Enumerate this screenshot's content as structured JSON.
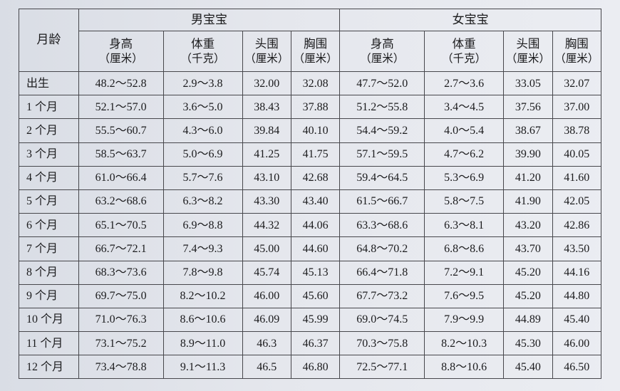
{
  "border_color": "#47474c",
  "text_color": "#1b1b1d",
  "background_color": "#e3e5eb",
  "font_family": "SimSun",
  "header": {
    "age_label": "月龄",
    "groups": [
      "男宝宝",
      "女宝宝"
    ],
    "metrics": [
      {
        "label": "身高",
        "unit": "（厘米）"
      },
      {
        "label": "体重",
        "unit": "（千克）"
      },
      {
        "label": "头围",
        "unit": "（厘米）"
      },
      {
        "label": "胸围",
        "unit": "（厘米）"
      }
    ]
  },
  "rows": [
    {
      "age": "出生",
      "m": [
        "48.2～52.8",
        "2.9～3.8",
        "32.00",
        "32.08"
      ],
      "f": [
        "47.7～52.0",
        "2.7～3.6",
        "33.05",
        "32.07"
      ]
    },
    {
      "age": "1 个月",
      "m": [
        "52.1～57.0",
        "3.6～5.0",
        "38.43",
        "37.88"
      ],
      "f": [
        "51.2～55.8",
        "3.4～4.5",
        "37.56",
        "37.00"
      ]
    },
    {
      "age": "2 个月",
      "m": [
        "55.5～60.7",
        "4.3～6.0",
        "39.84",
        "40.10"
      ],
      "f": [
        "54.4～59.2",
        "4.0～5.4",
        "38.67",
        "38.78"
      ]
    },
    {
      "age": "3 个月",
      "m": [
        "58.5～63.7",
        "5.0～6.9",
        "41.25",
        "41.75"
      ],
      "f": [
        "57.1～59.5",
        "4.7～6.2",
        "39.90",
        "40.05"
      ]
    },
    {
      "age": "4 个月",
      "m": [
        "61.0～66.4",
        "5.7～7.6",
        "43.10",
        "42.68"
      ],
      "f": [
        "59.4～64.5",
        "5.3～6.9",
        "41.20",
        "41.60"
      ]
    },
    {
      "age": "5 个月",
      "m": [
        "63.2～68.6",
        "6.3～8.2",
        "43.30",
        "43.40"
      ],
      "f": [
        "61.5～66.7",
        "5.8～7.5",
        "41.90",
        "42.05"
      ]
    },
    {
      "age": "6 个月",
      "m": [
        "65.1～70.5",
        "6.9～8.8",
        "44.32",
        "44.06"
      ],
      "f": [
        "63.3～68.6",
        "6.3～8.1",
        "43.20",
        "42.86"
      ]
    },
    {
      "age": "7 个月",
      "m": [
        "66.7～72.1",
        "7.4～9.3",
        "45.00",
        "44.60"
      ],
      "f": [
        "64.8～70.2",
        "6.8～8.6",
        "43.70",
        "43.50"
      ]
    },
    {
      "age": "8 个月",
      "m": [
        "68.3～73.6",
        "7.8～9.8",
        "45.74",
        "45.13"
      ],
      "f": [
        "66.4～71.8",
        "7.2～9.1",
        "45.20",
        "44.16"
      ]
    },
    {
      "age": "9 个月",
      "m": [
        "69.7～75.0",
        "8.2～10.2",
        "46.00",
        "45.60"
      ],
      "f": [
        "67.7～73.2",
        "7.6～9.5",
        "45.20",
        "44.80"
      ]
    },
    {
      "age": "10 个月",
      "m": [
        "71.0～76.3",
        "8.6～10.6",
        "46.09",
        "45.99"
      ],
      "f": [
        "69.0～74.5",
        "7.9～9.9",
        "44.89",
        "45.40"
      ]
    },
    {
      "age": "11 个月",
      "m": [
        "73.1～75.2",
        "8.9～11.0",
        "46.3",
        "46.37"
      ],
      "f": [
        "70.3～75.8",
        "8.2～10.3",
        "45.30",
        "46.00"
      ]
    },
    {
      "age": "12 个月",
      "m": [
        "73.4～78.8",
        "9.1～11.3",
        "46.5",
        "46.80"
      ],
      "f": [
        "72.5～77.1",
        "8.8～10.6",
        "45.40",
        "46.50"
      ]
    }
  ]
}
